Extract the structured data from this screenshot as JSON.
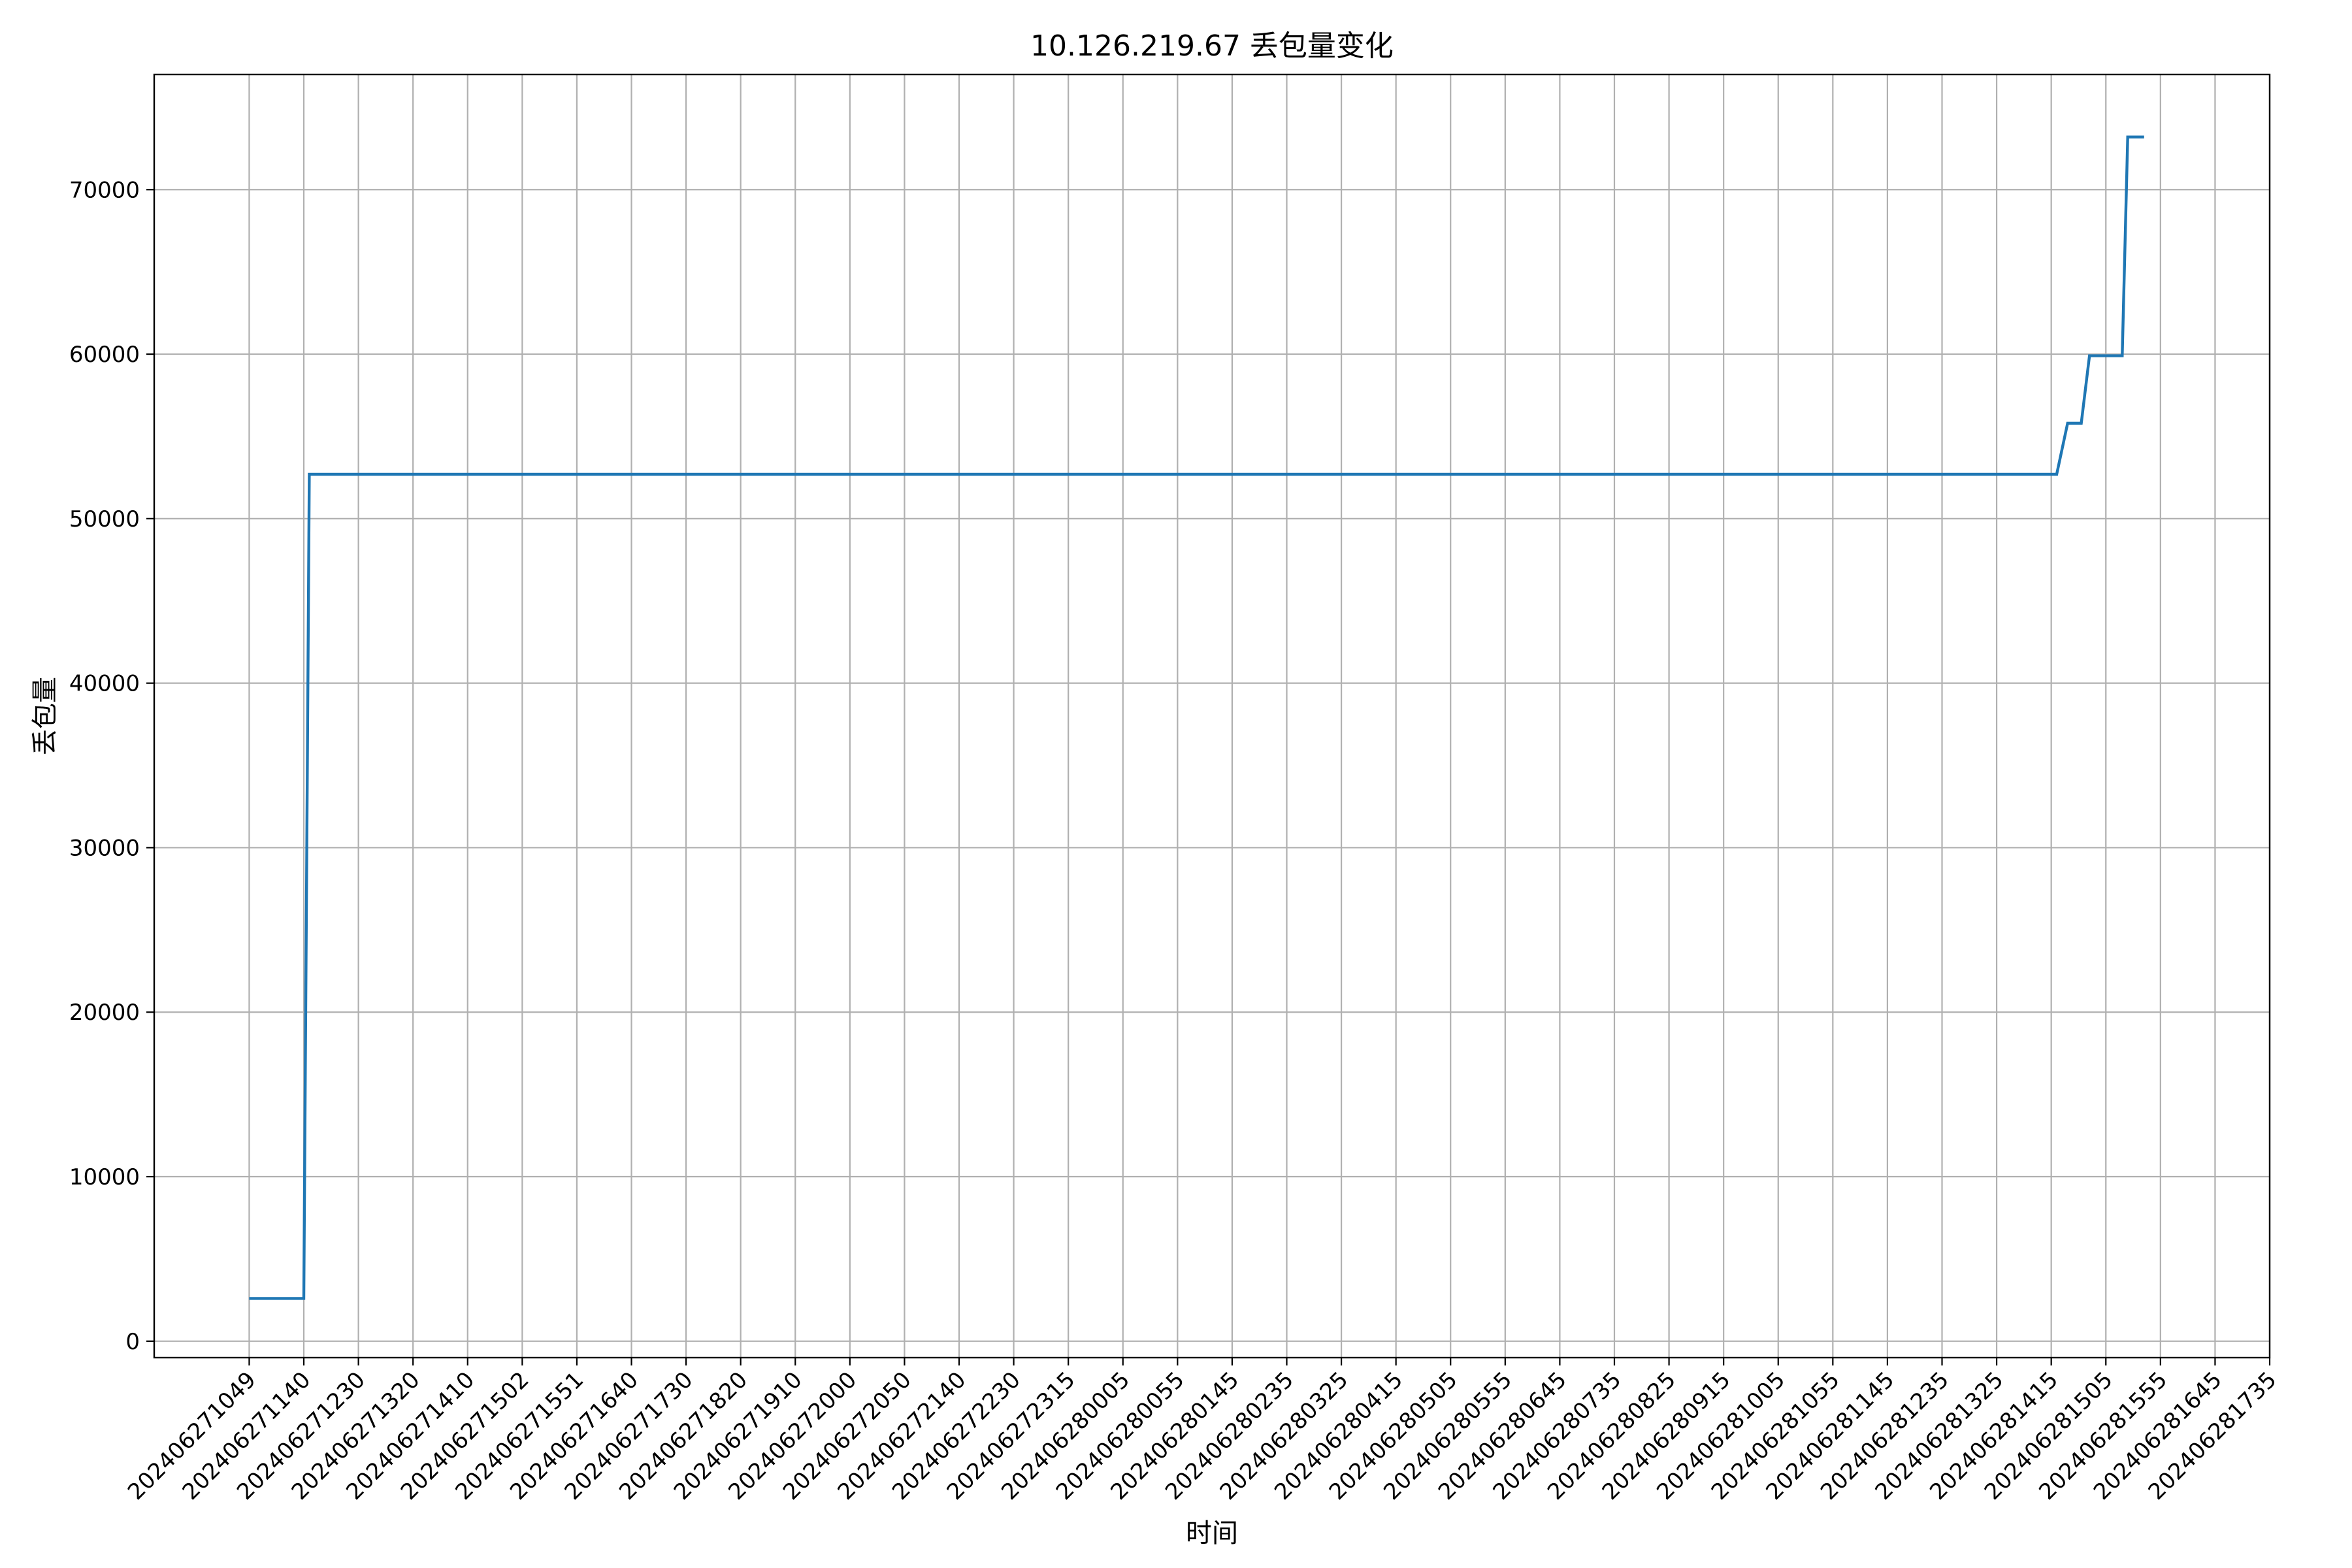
{
  "chart_data": {
    "type": "line",
    "title": "10.126.219.67 丢包量变化",
    "xlabel": "时间",
    "ylabel": "丢包量",
    "ylim": [
      -1000,
      77000
    ],
    "yticks": [
      0,
      10000,
      20000,
      30000,
      40000,
      50000,
      60000,
      70000
    ],
    "ytick_labels": [
      "0",
      "10000",
      "20000",
      "30000",
      "40000",
      "50000",
      "60000",
      "70000"
    ],
    "grid": true,
    "categories": [
      "202406271049",
      "202406271140",
      "202406271230",
      "202406271320",
      "202406271410",
      "202406271502",
      "202406271551",
      "202406271640",
      "202406271730",
      "202406271820",
      "202406271910",
      "202406272000",
      "202406272050",
      "202406272140",
      "202406272230",
      "202406272315",
      "202406280005",
      "202406280055",
      "202406280145",
      "202406280235",
      "202406280325",
      "202406280415",
      "202406280505",
      "202406280555",
      "202406280645",
      "202406280735",
      "202406280825",
      "202406280915",
      "202406281005",
      "202406281055",
      "202406281145",
      "202406281235",
      "202406281325",
      "202406281415",
      "202406281505",
      "202406281555",
      "202406281645",
      "202406281735"
    ],
    "x_range": [
      -1.74,
      37.0
    ],
    "series": [
      {
        "color": "#1f77b4",
        "x": [
          0,
          1.0,
          1.1,
          33.1,
          33.3,
          33.55,
          33.7,
          34.3,
          34.4,
          34.7
        ],
        "values": [
          2600,
          2600,
          52700,
          52700,
          55800,
          55800,
          59900,
          59900,
          73200,
          73200
        ]
      }
    ]
  }
}
